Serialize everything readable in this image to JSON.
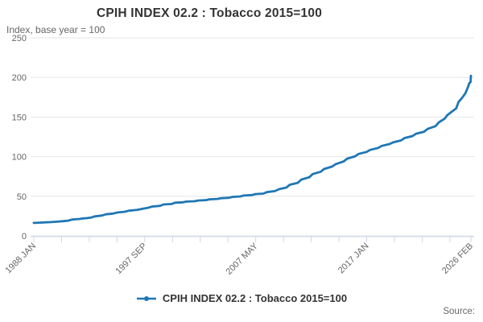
{
  "header": {
    "title": "CPIH INDEX 02.2 : Tobacco 2015=100",
    "subtitle": "Index, base year = 100"
  },
  "legend": {
    "label": "CPIH INDEX 02.2 : Tobacco 2015=100"
  },
  "footer": {
    "source_label": "Source:"
  },
  "colors": {
    "line": "#1f77b4",
    "grid": "#e6e6e6",
    "axis": "#ccd6eb",
    "text_muted": "#666666",
    "text_strong": "#333333"
  },
  "chart_data": {
    "type": "line",
    "title": "CPIH INDEX 02.2 : Tobacco 2015=100",
    "subtitle": "Index, base year = 100",
    "xlabel": "",
    "ylabel": "Index, base year = 100",
    "ylim": [
      0,
      250
    ],
    "yticks": [
      0,
      50,
      100,
      150,
      200,
      250
    ],
    "grid": "horizontal",
    "legend_position": "bottom",
    "x_start": "1988 JAN",
    "x_end": "2026 FEB",
    "total_months": 457,
    "minor_tick_interval_months": 29,
    "xtick_labels": [
      {
        "label": "1988 JAN",
        "month": 0
      },
      {
        "label": "1997 SEP",
        "month": 116
      },
      {
        "label": "2007 MAY",
        "month": 232
      },
      {
        "label": "2017 JAN",
        "month": 348
      },
      {
        "label": "2026 FEB",
        "month": 457
      }
    ],
    "series": [
      {
        "name": "CPIH INDEX 02.2 : Tobacco 2015=100",
        "points": [
          [
            1988.0,
            16.4
          ],
          [
            1988.5,
            16.7
          ],
          [
            1989.0,
            17.1
          ],
          [
            1989.5,
            17.4
          ],
          [
            1990.0,
            17.9
          ],
          [
            1990.5,
            18.5
          ],
          [
            1991.0,
            19.2
          ],
          [
            1991.3,
            20.5
          ],
          [
            1991.6,
            20.9
          ],
          [
            1992.0,
            21.3
          ],
          [
            1992.3,
            22.1
          ],
          [
            1992.6,
            22.4
          ],
          [
            1993.0,
            23.2
          ],
          [
            1993.3,
            24.6
          ],
          [
            1993.9,
            25.6
          ],
          [
            1994.3,
            27.2
          ],
          [
            1994.9,
            28.2
          ],
          [
            1995.3,
            29.6
          ],
          [
            1995.9,
            30.4
          ],
          [
            1996.3,
            31.8
          ],
          [
            1996.9,
            32.6
          ],
          [
            1997.0,
            32.7
          ],
          [
            1997.6,
            34.6
          ],
          [
            1997.9,
            35.3
          ],
          [
            1998.3,
            37.0
          ],
          [
            1999.0,
            37.9
          ],
          [
            1999.3,
            39.6
          ],
          [
            2000.0,
            40.2
          ],
          [
            2000.3,
            41.9
          ],
          [
            2001.0,
            42.4
          ],
          [
            2001.3,
            43.3
          ],
          [
            2002.0,
            43.7
          ],
          [
            2002.3,
            44.6
          ],
          [
            2003.0,
            45.1
          ],
          [
            2003.3,
            46.1
          ],
          [
            2004.0,
            46.6
          ],
          [
            2004.3,
            47.6
          ],
          [
            2005.0,
            48.1
          ],
          [
            2005.3,
            49.2
          ],
          [
            2006.0,
            49.8
          ],
          [
            2006.3,
            50.9
          ],
          [
            2007.0,
            51.5
          ],
          [
            2007.3,
            52.7
          ],
          [
            2008.0,
            53.4
          ],
          [
            2008.3,
            55.2
          ],
          [
            2009.0,
            56.5
          ],
          [
            2009.4,
            59.0
          ],
          [
            2010.0,
            61.0
          ],
          [
            2010.3,
            64.5
          ],
          [
            2011.0,
            67.0
          ],
          [
            2011.3,
            71.0
          ],
          [
            2012.0,
            74.0
          ],
          [
            2012.3,
            78.0
          ],
          [
            2013.0,
            81.0
          ],
          [
            2013.3,
            84.5
          ],
          [
            2014.0,
            87.5
          ],
          [
            2014.3,
            90.5
          ],
          [
            2015.0,
            94.0
          ],
          [
            2015.3,
            97.5
          ],
          [
            2016.0,
            100.5
          ],
          [
            2016.3,
            103.5
          ],
          [
            2017.0,
            106.0
          ],
          [
            2017.3,
            108.5
          ],
          [
            2018.0,
            111.0
          ],
          [
            2018.3,
            113.5
          ],
          [
            2019.0,
            116.0
          ],
          [
            2019.3,
            118.0
          ],
          [
            2020.0,
            120.5
          ],
          [
            2020.3,
            123.5
          ],
          [
            2021.0,
            126.0
          ],
          [
            2021.3,
            129.0
          ],
          [
            2022.0,
            131.5
          ],
          [
            2022.3,
            135.0
          ],
          [
            2023.0,
            138.5
          ],
          [
            2023.3,
            143.5
          ],
          [
            2023.8,
            148.0
          ],
          [
            2024.0,
            152.0
          ],
          [
            2024.3,
            155.5
          ],
          [
            2024.8,
            161.0
          ],
          [
            2025.0,
            169.0
          ],
          [
            2025.3,
            174.0
          ],
          [
            2025.6,
            180.0
          ],
          [
            2025.8,
            187.0
          ],
          [
            2025.95,
            193.0
          ],
          [
            2026.05,
            194.0
          ],
          [
            2026.12,
            202.0
          ]
        ]
      }
    ]
  }
}
